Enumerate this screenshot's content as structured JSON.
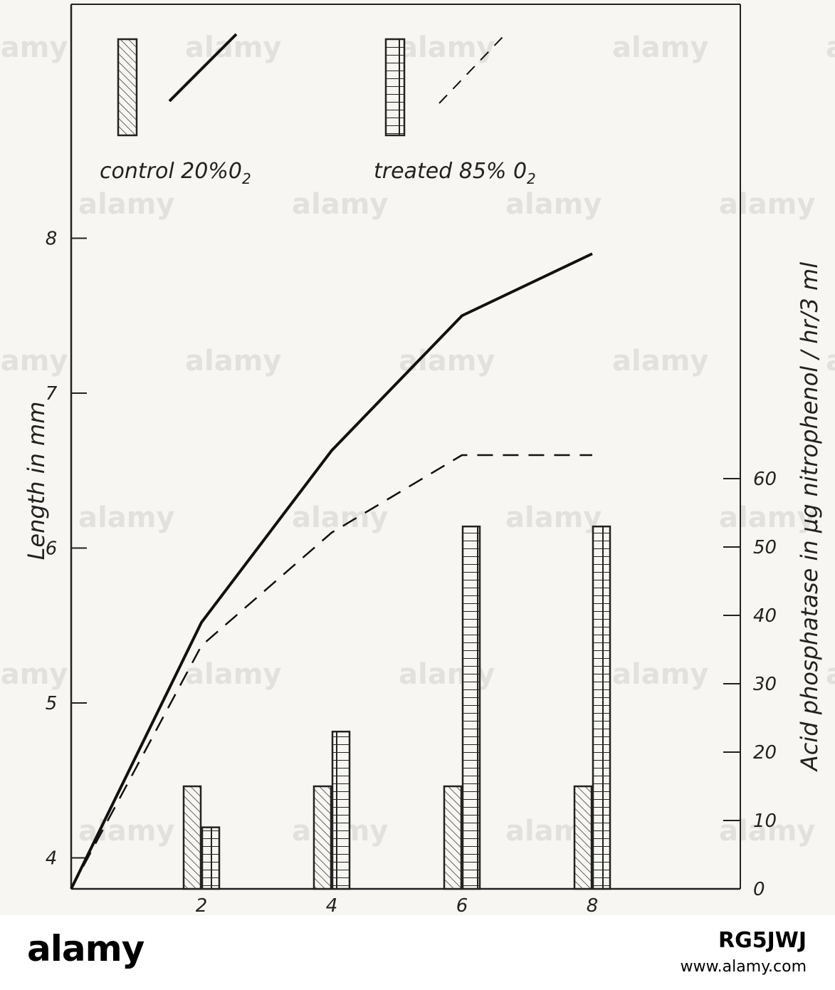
{
  "chart_data": {
    "type": "line+bar",
    "x_ticks": [
      2,
      4,
      6,
      8
    ],
    "y_left": {
      "label": "Length in mm",
      "ticks": [
        4,
        5,
        6,
        7,
        8
      ],
      "range": [
        3.8,
        8.9
      ]
    },
    "y_right": {
      "label": "Acid phosphatase in µg nitrophenol / hr/3 ml",
      "ticks": [
        0,
        10,
        20,
        30,
        40,
        50,
        60
      ],
      "range": [
        0,
        72
      ]
    },
    "legend": [
      {
        "name": "control 20% O2",
        "label": "control 20%0",
        "sub": "2",
        "line_style": "solid",
        "bar_pattern": "hatched"
      },
      {
        "name": "treated 85% O2",
        "label": "treated 85% 0",
        "sub": "2",
        "line_style": "dashed",
        "bar_pattern": "checkered"
      }
    ],
    "line_series": [
      {
        "name": "control 20% O2",
        "style": "solid",
        "points": [
          [
            0,
            3.8
          ],
          [
            2,
            5.52
          ],
          [
            4,
            6.63
          ],
          [
            6,
            7.5
          ],
          [
            8,
            7.9
          ]
        ]
      },
      {
        "name": "treated 85% O2",
        "style": "dashed",
        "points": [
          [
            0,
            3.8
          ],
          [
            2,
            5.37
          ],
          [
            4,
            6.1
          ],
          [
            6,
            6.6
          ],
          [
            8,
            6.6
          ]
        ]
      }
    ],
    "bar_series": [
      {
        "name": "control 20% O2",
        "pattern": "hatched",
        "x": [
          2,
          4,
          6,
          8
        ],
        "values": [
          15,
          15,
          15,
          15
        ]
      },
      {
        "name": "treated 85% O2",
        "pattern": "checkered",
        "x": [
          2,
          4,
          6,
          8
        ],
        "values": [
          9,
          23,
          53,
          53
        ]
      }
    ]
  },
  "watermark": {
    "text": "alamy"
  },
  "footer": {
    "brand": "alamy",
    "image_id": "RG5JWJ",
    "url": "www.alamy.com"
  }
}
